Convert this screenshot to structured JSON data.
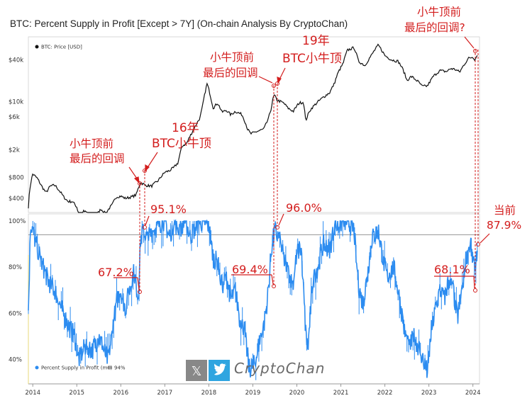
{
  "chart_data": {
    "type": "line",
    "title": "BTC: Percent Supply in Profit [Except > 7Y] (On-chain Analysis By CryptoChan)",
    "x_axis": {
      "ticks": [
        "2014",
        "2015",
        "2016",
        "2017",
        "2018",
        "2019",
        "2020",
        "2021",
        "2022",
        "2023",
        "2024"
      ],
      "range": [
        2013.9,
        2024.15
      ]
    },
    "price_panel": {
      "scale": "log",
      "range": [
        250,
        80000
      ],
      "tick_labels": [
        "$40k",
        "$10k",
        "$6k",
        "$2k",
        "$800",
        "$400"
      ],
      "tick_values": [
        40000,
        10000,
        6000,
        2000,
        800,
        400
      ],
      "legend": "BTC: Price [USD]",
      "color": "#111111",
      "series": [
        [
          2013.9,
          300
        ],
        [
          2013.95,
          650
        ],
        [
          2014.0,
          900
        ],
        [
          2014.1,
          780
        ],
        [
          2014.2,
          600
        ],
        [
          2014.3,
          480
        ],
        [
          2014.4,
          600
        ],
        [
          2014.5,
          620
        ],
        [
          2014.6,
          520
        ],
        [
          2014.7,
          420
        ],
        [
          2014.8,
          360
        ],
        [
          2014.9,
          360
        ],
        [
          2015.0,
          300
        ],
        [
          2015.05,
          220
        ],
        [
          2015.15,
          260
        ],
        [
          2015.3,
          240
        ],
        [
          2015.45,
          230
        ],
        [
          2015.55,
          280
        ],
        [
          2015.65,
          240
        ],
        [
          2015.8,
          320
        ],
        [
          2015.9,
          420
        ],
        [
          2016.0,
          430
        ],
        [
          2016.1,
          400
        ],
        [
          2016.25,
          420
        ],
        [
          2016.35,
          450
        ],
        [
          2016.45,
          680
        ],
        [
          2016.55,
          620
        ],
        [
          2016.7,
          600
        ],
        [
          2016.85,
          720
        ],
        [
          2017.0,
          950
        ],
        [
          2017.1,
          1000
        ],
        [
          2017.2,
          1100
        ],
        [
          2017.3,
          1300
        ],
        [
          2017.4,
          2300
        ],
        [
          2017.5,
          2500
        ],
        [
          2017.6,
          3400
        ],
        [
          2017.7,
          4500
        ],
        [
          2017.8,
          5800
        ],
        [
          2017.85,
          8000
        ],
        [
          2017.9,
          12000
        ],
        [
          2017.96,
          18000
        ],
        [
          2018.05,
          11000
        ],
        [
          2018.1,
          8000
        ],
        [
          2018.2,
          9500
        ],
        [
          2018.3,
          7000
        ],
        [
          2018.4,
          7500
        ],
        [
          2018.5,
          6400
        ],
        [
          2018.6,
          7200
        ],
        [
          2018.75,
          6500
        ],
        [
          2018.88,
          4000
        ],
        [
          2018.95,
          3400
        ],
        [
          2019.1,
          3700
        ],
        [
          2019.25,
          4000
        ],
        [
          2019.35,
          5500
        ],
        [
          2019.42,
          8000
        ],
        [
          2019.48,
          12500
        ],
        [
          2019.55,
          10500
        ],
        [
          2019.7,
          9500
        ],
        [
          2019.8,
          8000
        ],
        [
          2019.92,
          7200
        ],
        [
          2020.05,
          9500
        ],
        [
          2020.15,
          9800
        ],
        [
          2020.2,
          5200
        ],
        [
          2020.3,
          7500
        ],
        [
          2020.45,
          9500
        ],
        [
          2020.6,
          11500
        ],
        [
          2020.75,
          13500
        ],
        [
          2020.85,
          18000
        ],
        [
          2020.95,
          27000
        ],
        [
          2021.05,
          35000
        ],
        [
          2021.15,
          55000
        ],
        [
          2021.3,
          60000
        ],
        [
          2021.4,
          38000
        ],
        [
          2021.55,
          33000
        ],
        [
          2021.7,
          47000
        ],
        [
          2021.85,
          65000
        ],
        [
          2022.0,
          46000
        ],
        [
          2022.15,
          40000
        ],
        [
          2022.3,
          38000
        ],
        [
          2022.4,
          30000
        ],
        [
          2022.5,
          20000
        ],
        [
          2022.6,
          23000
        ],
        [
          2022.75,
          19500
        ],
        [
          2022.85,
          16500
        ],
        [
          2022.97,
          16800
        ],
        [
          2023.1,
          23000
        ],
        [
          2023.25,
          28000
        ],
        [
          2023.4,
          27000
        ],
        [
          2023.5,
          30000
        ],
        [
          2023.6,
          29000
        ],
        [
          2023.7,
          26500
        ],
        [
          2023.8,
          34000
        ],
        [
          2023.9,
          42000
        ],
        [
          2024.0,
          44000
        ],
        [
          2024.05,
          40000
        ],
        [
          2024.1,
          48000
        ]
      ]
    },
    "supply_panel": {
      "range": [
        30,
        100
      ],
      "tick_labels": [
        "100%",
        "80%",
        "60%",
        "40%"
      ],
      "tick_values": [
        100,
        80,
        60,
        40
      ],
      "reference_line": 94,
      "legend": "Percent Supply in Profit (m6)",
      "legend_ref": "94%",
      "color": "#2c8cf0",
      "series": [
        [
          2013.9,
          60
        ],
        [
          2013.95,
          100
        ],
        [
          2014.05,
          92
        ],
        [
          2014.2,
          82
        ],
        [
          2014.35,
          74
        ],
        [
          2014.5,
          70
        ],
        [
          2014.65,
          62
        ],
        [
          2014.8,
          55
        ],
        [
          2014.95,
          50
        ],
        [
          2015.05,
          40
        ],
        [
          2015.2,
          46
        ],
        [
          2015.35,
          44
        ],
        [
          2015.5,
          50
        ],
        [
          2015.6,
          45
        ],
        [
          2015.7,
          40
        ],
        [
          2015.78,
          48
        ],
        [
          2015.9,
          65
        ],
        [
          2016.0,
          70
        ],
        [
          2016.1,
          62
        ],
        [
          2016.2,
          70
        ],
        [
          2016.3,
          78
        ],
        [
          2016.4,
          67
        ],
        [
          2016.45,
          92
        ],
        [
          2016.5,
          95
        ],
        [
          2016.6,
          92
        ],
        [
          2016.75,
          96
        ],
        [
          2016.9,
          99
        ],
        [
          2017.0,
          100
        ],
        [
          2017.1,
          93
        ],
        [
          2017.2,
          99
        ],
        [
          2017.35,
          97
        ],
        [
          2017.45,
          100
        ],
        [
          2017.6,
          94
        ],
        [
          2017.75,
          99
        ],
        [
          2017.9,
          100
        ],
        [
          2018.0,
          98
        ],
        [
          2018.1,
          84
        ],
        [
          2018.2,
          82
        ],
        [
          2018.3,
          72
        ],
        [
          2018.4,
          76
        ],
        [
          2018.5,
          66
        ],
        [
          2018.6,
          70
        ],
        [
          2018.7,
          58
        ],
        [
          2018.8,
          54
        ],
        [
          2018.85,
          46
        ],
        [
          2018.92,
          36
        ],
        [
          2019.05,
          38
        ],
        [
          2019.15,
          48
        ],
        [
          2019.25,
          54
        ],
        [
          2019.35,
          69
        ],
        [
          2019.42,
          88
        ],
        [
          2019.5,
          96
        ],
        [
          2019.6,
          92
        ],
        [
          2019.7,
          84
        ],
        [
          2019.8,
          78
        ],
        [
          2019.9,
          72
        ],
        [
          2020.0,
          86
        ],
        [
          2020.1,
          88
        ],
        [
          2020.2,
          52
        ],
        [
          2020.25,
          44
        ],
        [
          2020.35,
          72
        ],
        [
          2020.5,
          82
        ],
        [
          2020.6,
          90
        ],
        [
          2020.75,
          88
        ],
        [
          2020.85,
          97
        ],
        [
          2021.0,
          99
        ],
        [
          2021.15,
          100
        ],
        [
          2021.3,
          96
        ],
        [
          2021.4,
          72
        ],
        [
          2021.5,
          64
        ],
        [
          2021.6,
          76
        ],
        [
          2021.7,
          92
        ],
        [
          2021.85,
          96
        ],
        [
          2021.95,
          84
        ],
        [
          2022.05,
          76
        ],
        [
          2022.2,
          80
        ],
        [
          2022.3,
          70
        ],
        [
          2022.45,
          52
        ],
        [
          2022.55,
          44
        ],
        [
          2022.65,
          50
        ],
        [
          2022.8,
          44
        ],
        [
          2022.9,
          38
        ],
        [
          2022.97,
          34
        ],
        [
          2023.05,
          52
        ],
        [
          2023.15,
          62
        ],
        [
          2023.25,
          70
        ],
        [
          2023.35,
          66
        ],
        [
          2023.45,
          74
        ],
        [
          2023.55,
          70
        ],
        [
          2023.65,
          58
        ],
        [
          2023.75,
          70
        ],
        [
          2023.85,
          85
        ],
        [
          2023.95,
          90
        ],
        [
          2024.0,
          82
        ],
        [
          2024.05,
          78
        ],
        [
          2024.1,
          88
        ]
      ]
    },
    "annotations": [
      {
        "text": "小牛顶前",
        "line2": "最后的回调"
      },
      {
        "text": "16年",
        "line2": "BTC小牛顶"
      },
      {
        "text": "小牛顶前",
        "line2": "最后的回调"
      },
      {
        "text": "19年",
        "line2": "BTC小牛顶"
      },
      {
        "text": "小牛顶前",
        "line2": "最后的回调?"
      },
      {
        "text": "当前",
        "line2": "87.9%"
      },
      {
        "text": "95.1%"
      },
      {
        "text": "96.0%"
      },
      {
        "text": "67.2%"
      },
      {
        "text": "69.4%"
      },
      {
        "text": "68.1%"
      }
    ],
    "watermark": "CryptoChan"
  },
  "colors": {
    "price": "#111111",
    "supply": "#2c8cf0",
    "annotation": "#d31d1d",
    "ref_line": "#9a9a9a"
  }
}
